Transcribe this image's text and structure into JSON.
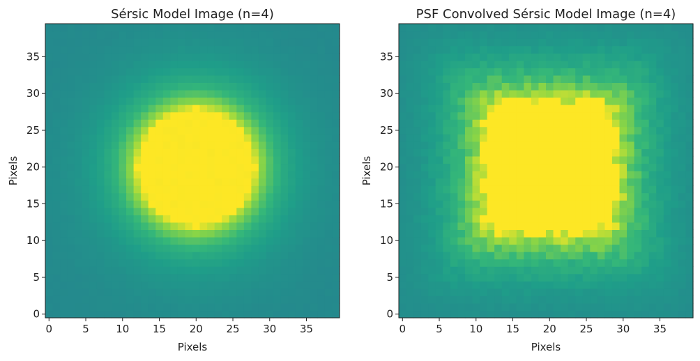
{
  "chart_data": [
    {
      "type": "heatmap",
      "title": "Sérsic Model Image (n=4)",
      "xlabel": "Pixels",
      "ylabel": "Pixels",
      "xlim": [
        -0.5,
        39.5
      ],
      "ylim": [
        -0.5,
        39.5
      ],
      "xticks": [
        0,
        5,
        10,
        15,
        20,
        25,
        30,
        35
      ],
      "yticks": [
        0,
        5,
        10,
        15,
        20,
        25,
        30,
        35
      ],
      "grid": false,
      "colormap": "viridis",
      "shape": "circle",
      "center": [
        20,
        20
      ],
      "saturated_radius": 8,
      "halo_radius": 12,
      "background_level": 0.53
    },
    {
      "type": "heatmap",
      "title": "PSF Convolved Sérsic Model Image (n=4)",
      "xlabel": "Pixels",
      "ylabel": "Pixels",
      "xlim": [
        -0.5,
        39.5
      ],
      "ylim": [
        -0.5,
        39.5
      ],
      "xticks": [
        0,
        5,
        10,
        15,
        20,
        25,
        30,
        35
      ],
      "yticks": [
        0,
        5,
        10,
        15,
        20,
        25,
        30,
        35
      ],
      "grid": false,
      "colormap": "viridis",
      "shape": "square",
      "center": [
        20,
        20
      ],
      "saturated_half_width": 9,
      "halo_half_width": 14,
      "background_level": 0.53
    }
  ]
}
